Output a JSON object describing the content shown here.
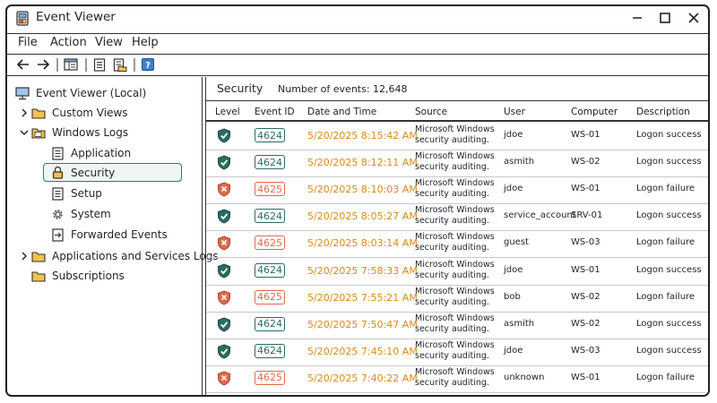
{
  "window": {
    "title": "Event Viewer"
  },
  "menu": [
    "File",
    "Action",
    "View",
    "Help"
  ],
  "tree": {
    "root": "Event Viewer (Local)",
    "custom_views": "Custom Views",
    "windows_logs": "Windows Logs",
    "children": [
      "Application",
      "Security",
      "Setup",
      "System",
      "Forwarded Events"
    ],
    "app_services": "Applications and Services Logs",
    "subscriptions": "Subscriptions"
  },
  "pane": {
    "title": "Security",
    "count_label": "Number of events: 12,648",
    "columns": [
      "Level",
      "Event ID",
      "Date and Time",
      "Source",
      "User",
      "Computer",
      "Description"
    ]
  },
  "events": [
    {
      "level": "success",
      "id": "4624",
      "datetime": "5/20/2025  8:15:42 AM",
      "source": "Microsoft Windows security auditing.",
      "user": "jdoe",
      "computer": "WS-01",
      "desc": "Logon success"
    },
    {
      "level": "success",
      "id": "4624",
      "datetime": "5/20/2025  8:12:11 AM",
      "source": "Microsoft Windows security auditing.",
      "user": "asmith",
      "computer": "WS-02",
      "desc": "Logon success"
    },
    {
      "level": "failure",
      "id": "4625",
      "datetime": "5/20/2025  8:10:03 AM",
      "source": "Microsoft Windows security auditing.",
      "user": "jdoe",
      "computer": "WS-01",
      "desc": "Logon failure"
    },
    {
      "level": "success",
      "id": "4624",
      "datetime": "5/20/2025  8:05:27 AM",
      "source": "Microsoft Windows security auditing.",
      "user": "service_account",
      "computer": "SRV-01",
      "desc": "Logon success"
    },
    {
      "level": "failure",
      "id": "4625",
      "datetime": "5/20/2025  8:03:14 AM",
      "source": "Microsoft Windows security auditing.",
      "user": "guest",
      "computer": "WS-03",
      "desc": "Logon failure"
    },
    {
      "level": "success",
      "id": "4624",
      "datetime": "5/20/2025  7:58:33 AM",
      "source": "Microsoft Windows security auditing.",
      "user": "jdoe",
      "computer": "WS-01",
      "desc": "Logon success"
    },
    {
      "level": "failure",
      "id": "4625",
      "datetime": "5/20/2025  7:55:21 AM",
      "source": "Microsoft Windows security auditing.",
      "user": "bob",
      "computer": "WS-02",
      "desc": "Logon failure"
    },
    {
      "level": "success",
      "id": "4624",
      "datetime": "5/20/2025  7:50:47 AM",
      "source": "Microsoft Windows security auditing.",
      "user": "asmith",
      "computer": "WS-02",
      "desc": "Logon success"
    },
    {
      "level": "success",
      "id": "4624",
      "datetime": "5/20/2025  7:45:10 AM",
      "source": "Microsoft Windows security auditing.",
      "user": "jdoe",
      "computer": "WS-03",
      "desc": "Logon success"
    },
    {
      "level": "failure",
      "id": "4625",
      "datetime": "5/20/2025  7:40:22 AM",
      "source": "Microsoft Windows security auditing.",
      "user": "unknown",
      "computer": "WS-01",
      "desc": "Logon failure"
    }
  ],
  "colors": {
    "success": "#2a6b62",
    "failure": "#e06a4a",
    "datetime": "#d98b1a"
  }
}
